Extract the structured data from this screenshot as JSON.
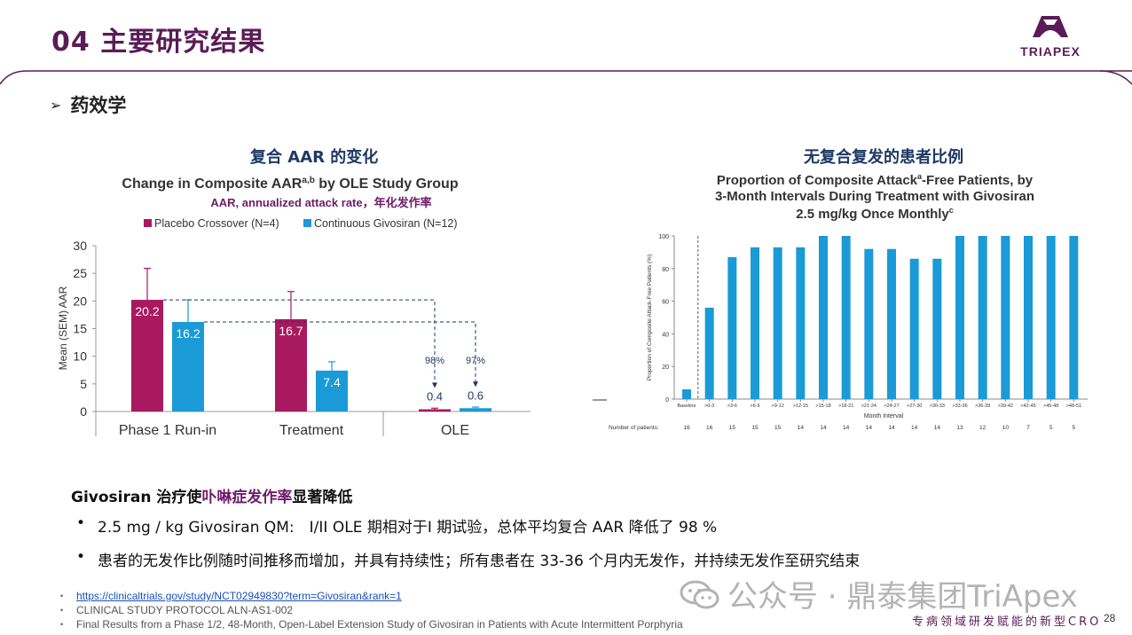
{
  "header": {
    "title": "04 主要研究结果",
    "logo_text": "TRIAPEX",
    "accent_color": "#5a1c56"
  },
  "section": {
    "arrow": "➢",
    "title": "药效学"
  },
  "left_panel": {
    "cn_title": "复合 AAR 的变化",
    "subtitle_note": "AAR, annualized attack rate，年化发作率"
  },
  "right_panel": {
    "cn_title": "无复合复发的患者比例"
  },
  "chart_data": [
    {
      "type": "bar",
      "title": "Change in Composite AAR",
      "title_sup": "a,b",
      "title_suffix": " by OLE Study Group",
      "ylabel": "Mean (SEM) AAR",
      "ylim": [
        0,
        30
      ],
      "yticks": [
        0,
        5,
        10,
        15,
        20,
        25,
        30
      ],
      "categories": [
        "Phase 1 Run-in",
        "Treatment",
        "OLE"
      ],
      "series": [
        {
          "name": "Placebo Crossover (N=4)",
          "color": "#a8195f",
          "values": [
            20.2,
            16.7,
            0.4
          ],
          "errors": [
            5.7,
            5.0,
            0.2
          ],
          "labels": [
            "20.2",
            "16.7",
            "0.4"
          ]
        },
        {
          "name": "Continuous Givosiran (N=12)",
          "color": "#1a9ad6",
          "values": [
            16.2,
            7.4,
            0.6
          ],
          "errors": [
            4.0,
            1.6,
            0.2
          ],
          "labels": [
            "16.2",
            "7.4",
            "0.6"
          ]
        }
      ],
      "reductions": [
        "98%",
        "97%"
      ],
      "legend_position": "top"
    },
    {
      "type": "bar",
      "title_line1": "Proportion of Composite Attack",
      "title_sup": "a",
      "title_line1_suffix": "-Free Patients, by",
      "title_line2": "3-Month Intervals During Treatment with Givosiran",
      "title_line3": "2.5 mg/kg Once Monthly",
      "title_line3_sup": "c",
      "ylabel": "Proportion of Composite Attack-Free Patients (%)",
      "xlabel": "Month Interval",
      "ylim": [
        0,
        100
      ],
      "yticks": [
        0,
        20,
        40,
        60,
        80,
        100
      ],
      "color": "#1a9ad6",
      "categories": [
        "Baseline",
        ">0-3",
        ">3-6",
        ">6-9",
        ">9-12",
        ">12-15",
        ">15-18",
        ">18-21",
        ">21-24",
        ">24-27",
        ">27-30",
        ">30-33",
        ">33-36",
        ">36-39",
        ">39-42",
        ">42-45",
        ">45-48",
        ">48-51"
      ],
      "values": [
        6,
        56,
        87,
        93,
        93,
        93,
        100,
        100,
        92,
        92,
        86,
        86,
        100,
        100,
        100,
        100,
        100,
        100
      ],
      "patients_label": "Number of patients:",
      "patients": [
        "16",
        "16",
        "15",
        "15",
        "15",
        "14",
        "14",
        "14",
        "14",
        "14",
        "14",
        "14",
        "13",
        "12",
        "10",
        "7",
        "5",
        "5"
      ]
    }
  ],
  "summary": {
    "lead": "Givosiran 治疗使",
    "highlight": "卟啉症发作率",
    "tail": "显著降低",
    "bullets": [
      "2.5 mg / kg Givosiran QM:　I/II OLE 期相对于I 期试验，总体平均复合 AAR 降低了 98 %",
      "患者的无发作比例随时间推移而增加，并具有持续性；所有患者在 33-36 个月内无发作，并持续无发作至研究结束"
    ]
  },
  "references": [
    "https://clinicaltrials.gov/study/NCT02949830?term=Givosiran&rank=1",
    "CLINICAL STUDY PROTOCOL  ALN-AS1-002",
    "Final Results from a Phase 1/2, 48-Month, Open-Label Extension Study of Givosiran in Patients with Acute Intermittent Porphyria"
  ],
  "footer": {
    "watermark": "公众号 · 鼎泰集团TriApex",
    "tagline": "专病领域研发赋能的新型CRO",
    "page_number": "28"
  }
}
